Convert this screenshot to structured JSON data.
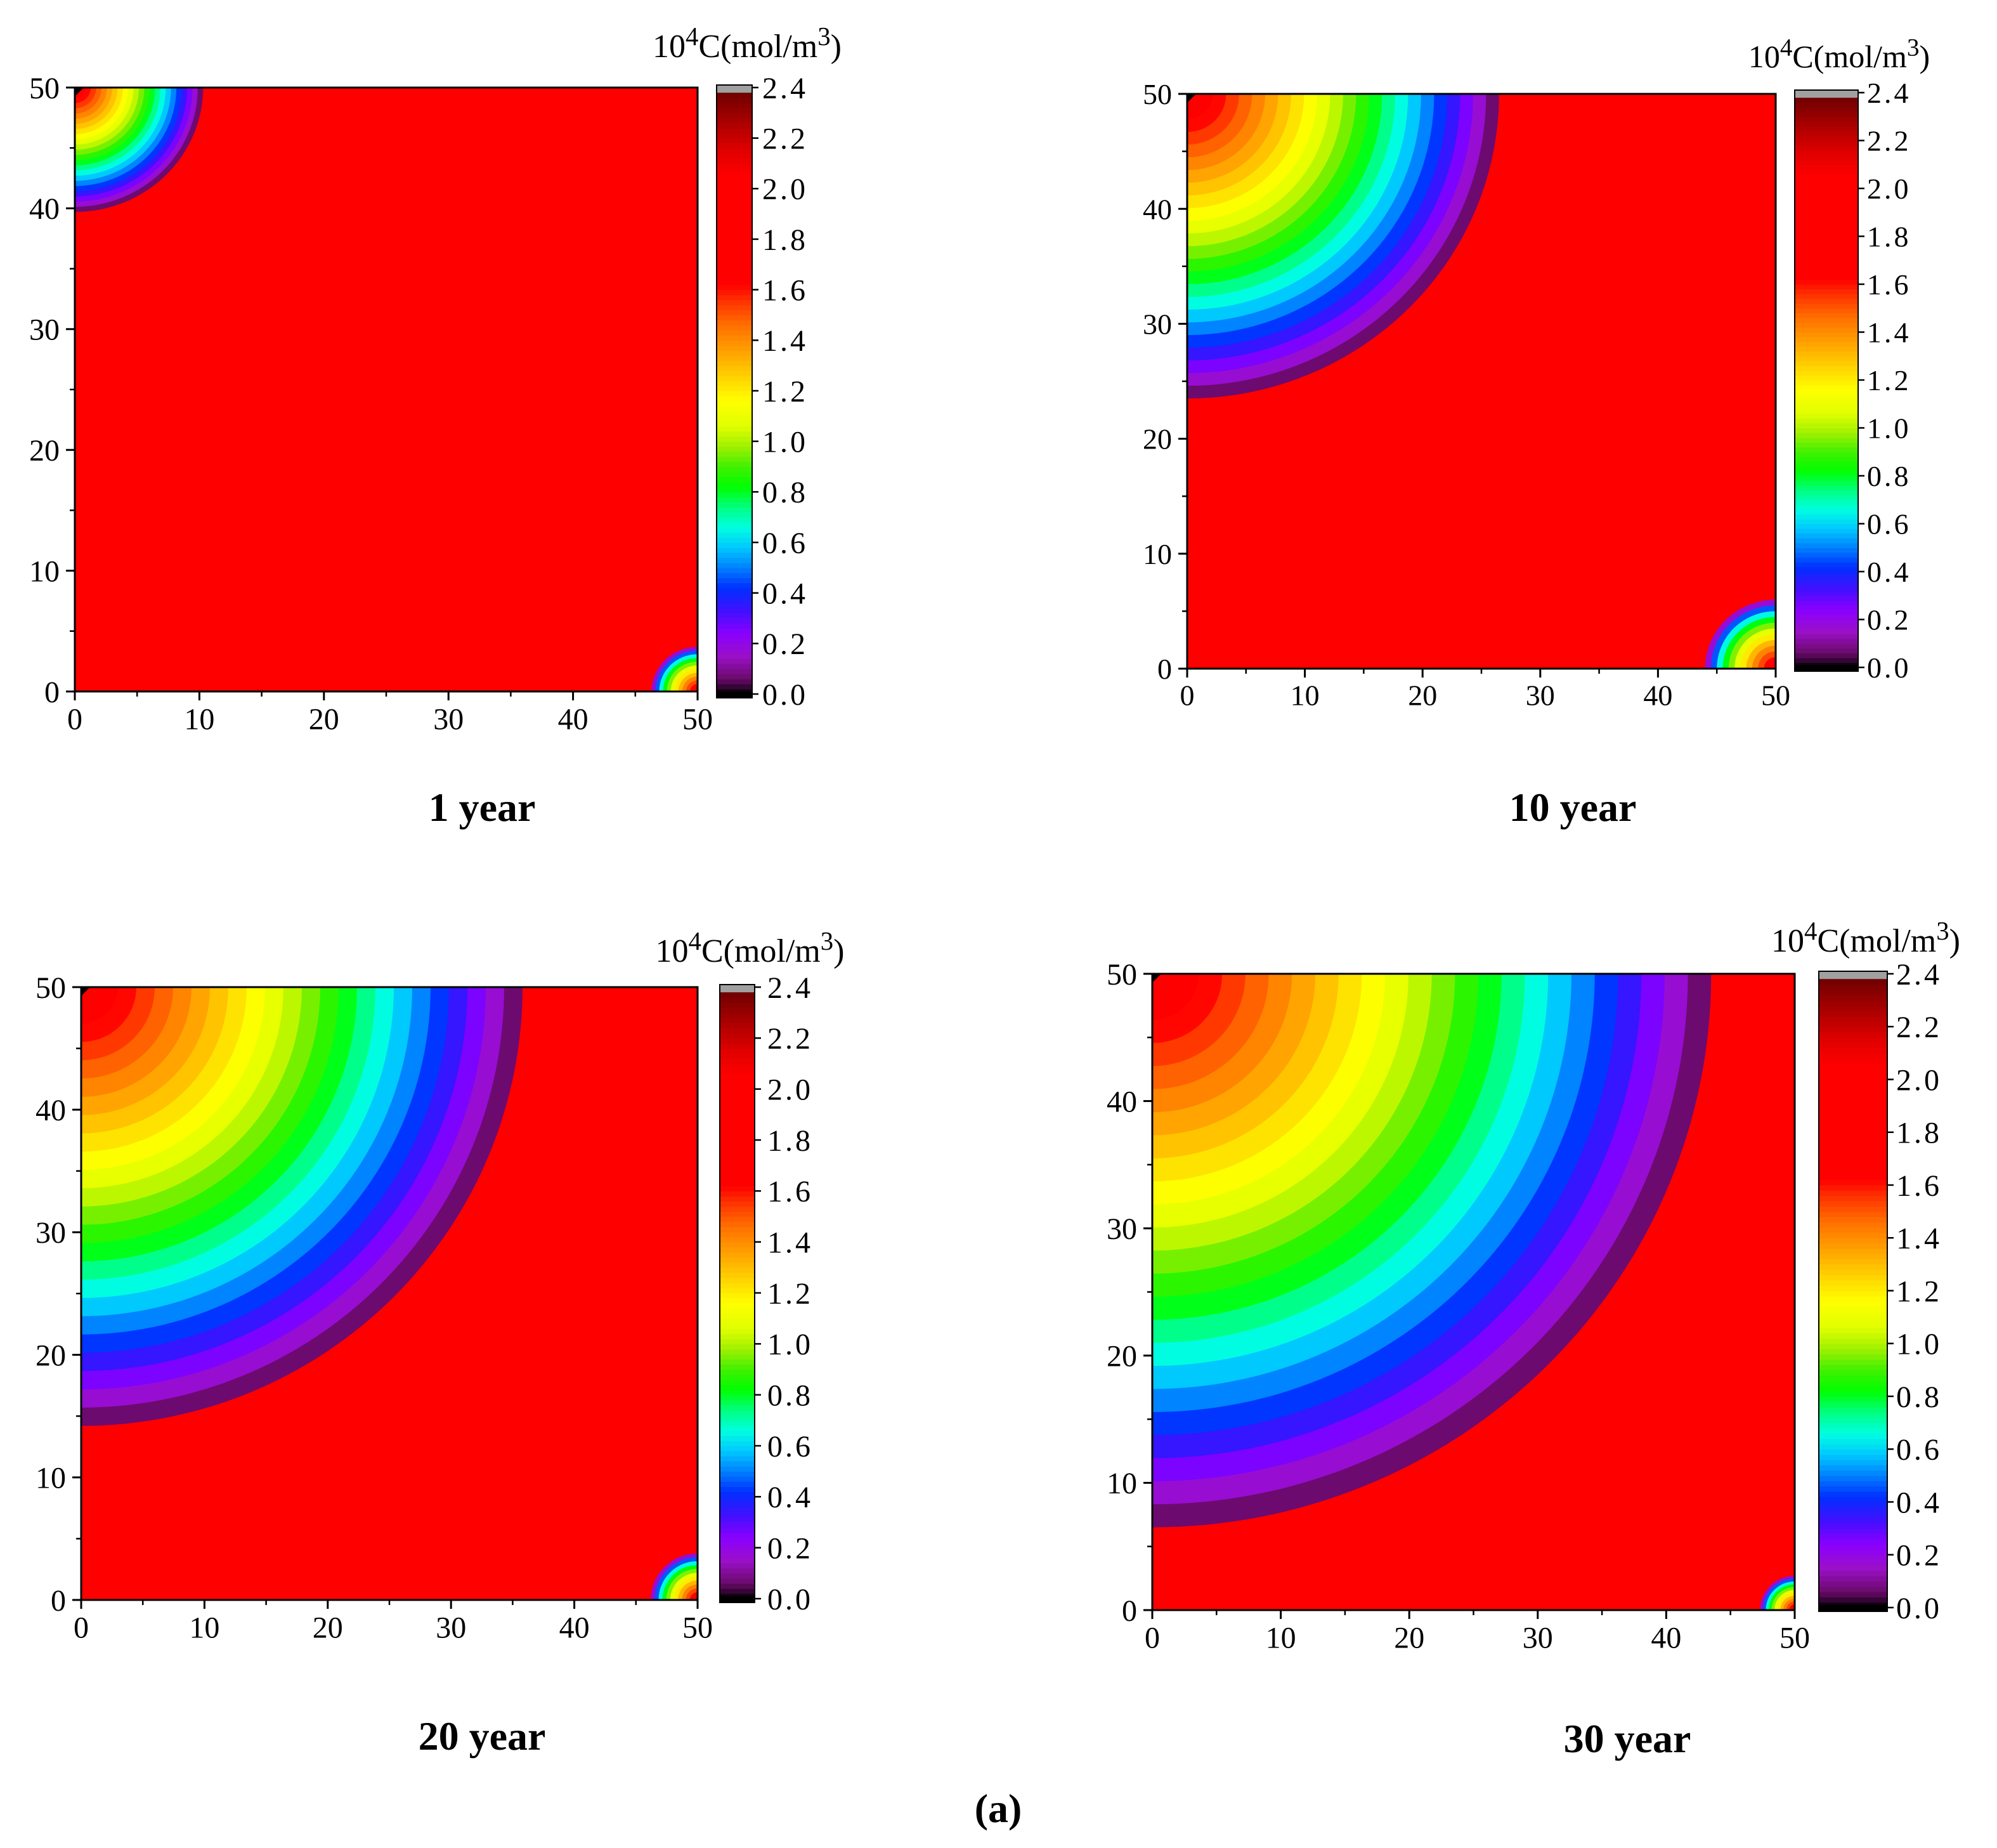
{
  "figure_label": "(a)",
  "chart_data": [
    {
      "type": "heatmap",
      "title": "1 year",
      "colorbar_title": {
        "base": "10",
        "exp": "4",
        "rest": "C(mol/m",
        "exp2": "3",
        "close": ")"
      },
      "x_ticks": [
        "0",
        "10",
        "20",
        "30",
        "40",
        "50"
      ],
      "y_ticks": [
        "0",
        "10",
        "20",
        "30",
        "40",
        "50"
      ],
      "xlim": [
        0,
        50
      ],
      "ylim": [
        0,
        50
      ],
      "colorbar_ticks": [
        "0.0",
        "0.2",
        "0.4",
        "0.6",
        "0.8",
        "1.0",
        "1.2",
        "1.4",
        "1.6",
        "1.8",
        "2.0",
        "2.2",
        "2.4"
      ],
      "clim": [
        0,
        2.4
      ],
      "background_value": 1.8,
      "front_radius_top_left": 10.3,
      "front_radius_bottom_right": 3.7
    },
    {
      "type": "heatmap",
      "title": "10 year",
      "colorbar_title": {
        "base": "10",
        "exp": "4",
        "rest": "C(mol/m",
        "exp2": "3",
        "close": ")"
      },
      "x_ticks": [
        "0",
        "10",
        "20",
        "30",
        "40",
        "50"
      ],
      "y_ticks": [
        "0",
        "10",
        "20",
        "30",
        "40",
        "50"
      ],
      "xlim": [
        0,
        50
      ],
      "ylim": [
        0,
        50
      ],
      "colorbar_ticks": [
        "0.0",
        "0.2",
        "0.4",
        "0.6",
        "0.8",
        "1.0",
        "1.2",
        "1.4",
        "1.6",
        "1.8",
        "2.0",
        "2.2",
        "2.4"
      ],
      "clim": [
        0,
        2.4
      ],
      "background_value": 1.8,
      "front_radius_top_left": 26.5,
      "front_radius_bottom_right": 6.0
    },
    {
      "type": "heatmap",
      "title": "20 year",
      "colorbar_title": {
        "base": "10",
        "exp": "4",
        "rest": "C(mol/m",
        "exp2": "3",
        "close": ")"
      },
      "x_ticks": [
        "0",
        "10",
        "20",
        "30",
        "40",
        "50"
      ],
      "y_ticks": [
        "0",
        "10",
        "20",
        "30",
        "40",
        "50"
      ],
      "xlim": [
        0,
        50
      ],
      "ylim": [
        0,
        50
      ],
      "colorbar_ticks": [
        "0.0",
        "0.2",
        "0.4",
        "0.6",
        "0.8",
        "1.0",
        "1.2",
        "1.4",
        "1.6",
        "1.8",
        "2.0",
        "2.2",
        "2.4"
      ],
      "clim": [
        0,
        2.4
      ],
      "background_value": 1.8,
      "front_radius_top_left": 35.8,
      "front_radius_bottom_right": 3.8
    },
    {
      "type": "heatmap",
      "title": "30 year",
      "colorbar_title": {
        "base": "10",
        "exp": "4",
        "rest": "C(mol/m",
        "exp2": "3",
        "close": ")"
      },
      "x_ticks": [
        "0",
        "10",
        "20",
        "30",
        "40",
        "50"
      ],
      "y_ticks": [
        "0",
        "10",
        "20",
        "30",
        "40",
        "50"
      ],
      "xlim": [
        0,
        50
      ],
      "ylim": [
        0,
        50
      ],
      "colorbar_ticks": [
        "0.0",
        "0.2",
        "0.4",
        "0.6",
        "0.8",
        "1.0",
        "1.2",
        "1.4",
        "1.6",
        "1.8",
        "2.0",
        "2.2",
        "2.4"
      ],
      "clim": [
        0,
        2.4
      ],
      "background_value": 1.8,
      "front_radius_top_left": 43.5,
      "front_radius_bottom_right": 2.7
    }
  ]
}
